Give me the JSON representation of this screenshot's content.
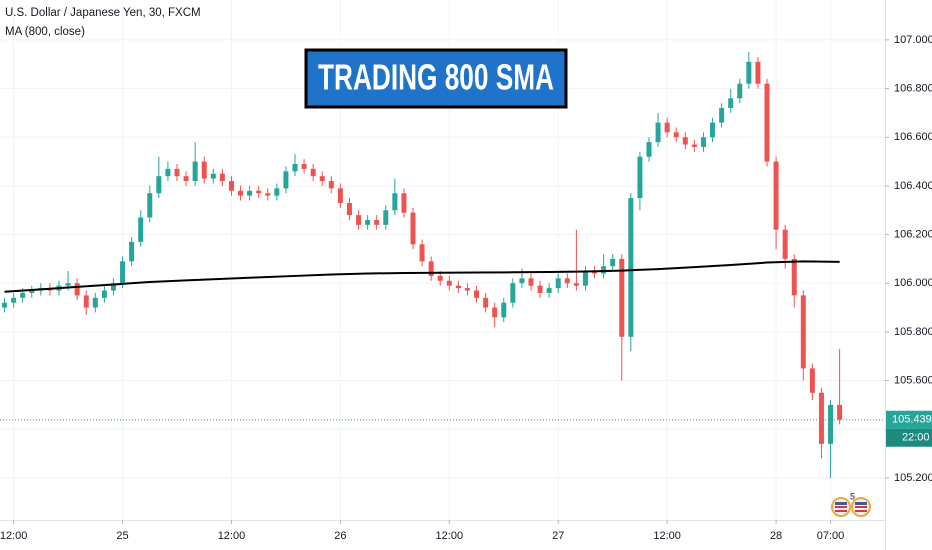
{
  "chart_data": {
    "type": "candlestick",
    "title": "U.S. Dollar / Japanese Yen, 30, FXCM",
    "banner": "TRADING 800 SMA",
    "up_color": "#26a69a",
    "down_color": "#ef5350",
    "open": [
      105.9,
      105.92,
      105.94,
      105.96,
      105.97,
      105.98,
      105.97,
      105.99,
      106.0,
      105.95,
      105.9,
      105.94,
      105.97,
      106.0,
      106.09,
      106.17,
      106.27,
      106.37,
      106.44,
      106.47,
      106.44,
      106.42,
      106.5,
      106.43,
      106.45,
      106.42,
      106.38,
      106.36,
      106.38,
      106.37,
      106.36,
      106.39,
      106.46,
      106.49,
      106.47,
      106.44,
      106.42,
      106.39,
      106.33,
      106.28,
      106.24,
      106.26,
      106.24,
      106.3,
      106.37,
      106.29,
      106.16,
      106.09,
      106.03,
      106.01,
      105.99,
      105.98,
      105.97,
      105.94,
      105.9,
      105.86,
      105.92,
      106.0,
      106.02,
      105.99,
      105.96,
      105.98,
      106.02,
      106.0,
      105.99,
      106.05,
      106.04,
      106.07,
      106.1,
      105.78,
      106.35,
      106.52,
      106.58,
      106.66,
      106.62,
      106.6,
      106.57,
      106.56,
      106.6,
      106.66,
      106.72,
      106.76,
      106.82,
      106.91,
      106.82,
      106.5,
      106.22,
      106.1,
      105.95,
      105.65,
      105.55,
      105.34,
      105.5
    ],
    "high": [
      105.94,
      105.96,
      105.98,
      105.99,
      106.0,
      106.0,
      106.01,
      106.05,
      106.02,
      105.97,
      105.96,
      105.99,
      106.02,
      106.11,
      106.19,
      106.3,
      106.4,
      106.52,
      106.5,
      106.49,
      106.46,
      106.58,
      106.52,
      106.47,
      106.47,
      106.44,
      106.4,
      106.4,
      106.4,
      106.39,
      106.41,
      106.48,
      106.53,
      106.51,
      106.49,
      106.46,
      106.44,
      106.41,
      106.35,
      106.3,
      106.28,
      106.28,
      106.32,
      106.43,
      106.39,
      106.31,
      106.18,
      106.11,
      106.05,
      106.03,
      106.01,
      106.0,
      105.99,
      105.96,
      105.92,
      105.94,
      106.02,
      106.06,
      106.04,
      106.01,
      106.0,
      106.04,
      106.04,
      106.22,
      106.07,
      106.07,
      106.12,
      106.12,
      106.12,
      106.37,
      106.54,
      106.6,
      106.7,
      106.68,
      106.64,
      106.62,
      106.59,
      106.62,
      106.68,
      106.74,
      106.8,
      106.84,
      106.95,
      106.93,
      106.84,
      106.52,
      106.24,
      106.12,
      105.97,
      105.67,
      105.57,
      105.52,
      105.73
    ],
    "low": [
      105.88,
      105.9,
      105.92,
      105.94,
      105.95,
      105.95,
      105.95,
      105.97,
      105.93,
      105.87,
      105.88,
      105.92,
      105.95,
      105.98,
      106.07,
      106.15,
      106.25,
      106.35,
      106.42,
      106.42,
      106.4,
      106.4,
      106.41,
      106.41,
      106.4,
      106.36,
      106.34,
      106.34,
      106.35,
      106.34,
      106.34,
      106.37,
      106.44,
      106.45,
      106.42,
      106.4,
      106.37,
      106.31,
      106.26,
      106.22,
      106.22,
      106.22,
      106.22,
      106.28,
      106.27,
      106.14,
      106.07,
      106.01,
      105.99,
      105.97,
      105.96,
      105.95,
      105.92,
      105.88,
      105.82,
      105.84,
      105.9,
      105.98,
      105.97,
      105.94,
      105.94,
      105.96,
      105.98,
      105.97,
      105.97,
      106.02,
      106.02,
      106.05,
      105.6,
      105.72,
      106.3,
      106.5,
      106.56,
      106.6,
      106.58,
      106.55,
      106.54,
      106.54,
      106.58,
      106.64,
      106.7,
      106.74,
      106.8,
      106.8,
      106.48,
      106.14,
      106.06,
      105.9,
      105.6,
      105.52,
      105.28,
      105.2,
      105.42
    ],
    "close": [
      105.92,
      105.94,
      105.96,
      105.97,
      105.98,
      105.97,
      105.99,
      106.0,
      105.95,
      105.9,
      105.94,
      105.97,
      106.0,
      106.09,
      106.17,
      106.27,
      106.37,
      106.44,
      106.47,
      106.44,
      106.42,
      106.5,
      106.43,
      106.45,
      106.42,
      106.38,
      106.36,
      106.38,
      106.37,
      106.36,
      106.39,
      106.46,
      106.49,
      106.47,
      106.44,
      106.42,
      106.39,
      106.33,
      106.28,
      106.24,
      106.26,
      106.24,
      106.3,
      106.37,
      106.29,
      106.16,
      106.09,
      106.03,
      106.01,
      105.99,
      105.98,
      105.97,
      105.94,
      105.9,
      105.86,
      105.92,
      106.0,
      106.02,
      105.99,
      105.96,
      105.98,
      106.02,
      106.0,
      105.99,
      106.05,
      106.04,
      106.07,
      106.1,
      105.78,
      106.35,
      106.52,
      106.58,
      106.66,
      106.62,
      106.6,
      106.57,
      106.56,
      106.6,
      106.66,
      106.72,
      106.76,
      106.82,
      106.91,
      106.82,
      106.5,
      106.22,
      106.1,
      105.95,
      105.65,
      105.55,
      105.34,
      105.5,
      105.439
    ],
    "ma": {
      "name": "MA (800, close)",
      "color": "#000000",
      "x": [
        0,
        4,
        8,
        12,
        16,
        20,
        24,
        28,
        32,
        36,
        40,
        44,
        48,
        52,
        56,
        60,
        64,
        68,
        72,
        76,
        80,
        84,
        88,
        92
      ],
      "values": [
        105.965,
        105.975,
        105.985,
        105.995,
        106.005,
        106.012,
        106.018,
        106.024,
        106.03,
        106.036,
        106.04,
        106.042,
        106.043,
        106.044,
        106.045,
        106.046,
        106.048,
        106.052,
        106.058,
        106.066,
        106.075,
        106.085,
        106.09,
        106.088
      ]
    },
    "xlim": [
      -0.5,
      97
    ],
    "xticks": [
      {
        "value": 1,
        "label": "12:00"
      },
      {
        "value": 13,
        "label": "25"
      },
      {
        "value": 25,
        "label": "12:00"
      },
      {
        "value": 37,
        "label": "26"
      },
      {
        "value": 49,
        "label": "12:00"
      },
      {
        "value": 61,
        "label": "27"
      },
      {
        "value": 73,
        "label": "12:00"
      },
      {
        "value": 85,
        "label": "28"
      },
      {
        "value": 91,
        "label": "07:00"
      }
    ],
    "ylim": [
      105.027,
      107.164
    ],
    "yticks": [
      {
        "value": 105.2,
        "label": "105.200"
      },
      {
        "value": 105.4,
        "label": "105.400"
      },
      {
        "value": 105.6,
        "label": "105.600"
      },
      {
        "value": 105.8,
        "label": "105.800"
      },
      {
        "value": 106.0,
        "label": "106.000"
      },
      {
        "value": 106.2,
        "label": "106.200"
      },
      {
        "value": 106.4,
        "label": "106.400"
      },
      {
        "value": 106.6,
        "label": "106.600"
      },
      {
        "value": 106.8,
        "label": "106.800"
      },
      {
        "value": 107.0,
        "label": "107.000"
      }
    ],
    "grid": true,
    "last_price": {
      "value": 105.439,
      "label": "105.439"
    },
    "countdown": "22:00",
    "event_count": "5"
  }
}
